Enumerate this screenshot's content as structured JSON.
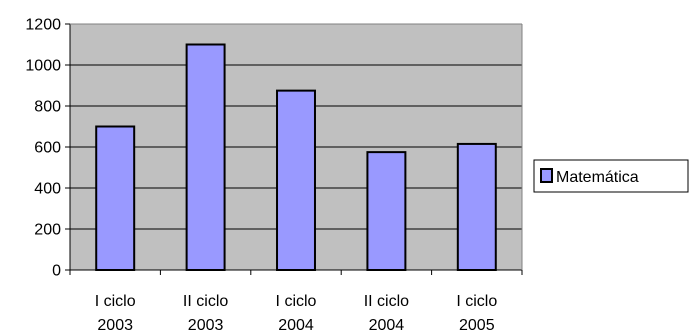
{
  "chart_data": {
    "type": "bar",
    "categories": [
      [
        "I ciclo",
        "2003"
      ],
      [
        "II ciclo",
        "2003"
      ],
      [
        "I ciclo",
        "2004"
      ],
      [
        "II ciclo",
        "2004"
      ],
      [
        "I ciclo",
        "2005"
      ]
    ],
    "series": [
      {
        "name": "Matemática",
        "values": [
          700,
          1100,
          875,
          575,
          615
        ],
        "color": "#9999ff"
      }
    ],
    "ylim": [
      0,
      1200
    ],
    "yticks": [
      0,
      200,
      400,
      600,
      800,
      1000,
      1200
    ],
    "grid": true,
    "legend_position": "right",
    "plot_background": "#c0c0c0",
    "bar_border_color": "#000000"
  }
}
